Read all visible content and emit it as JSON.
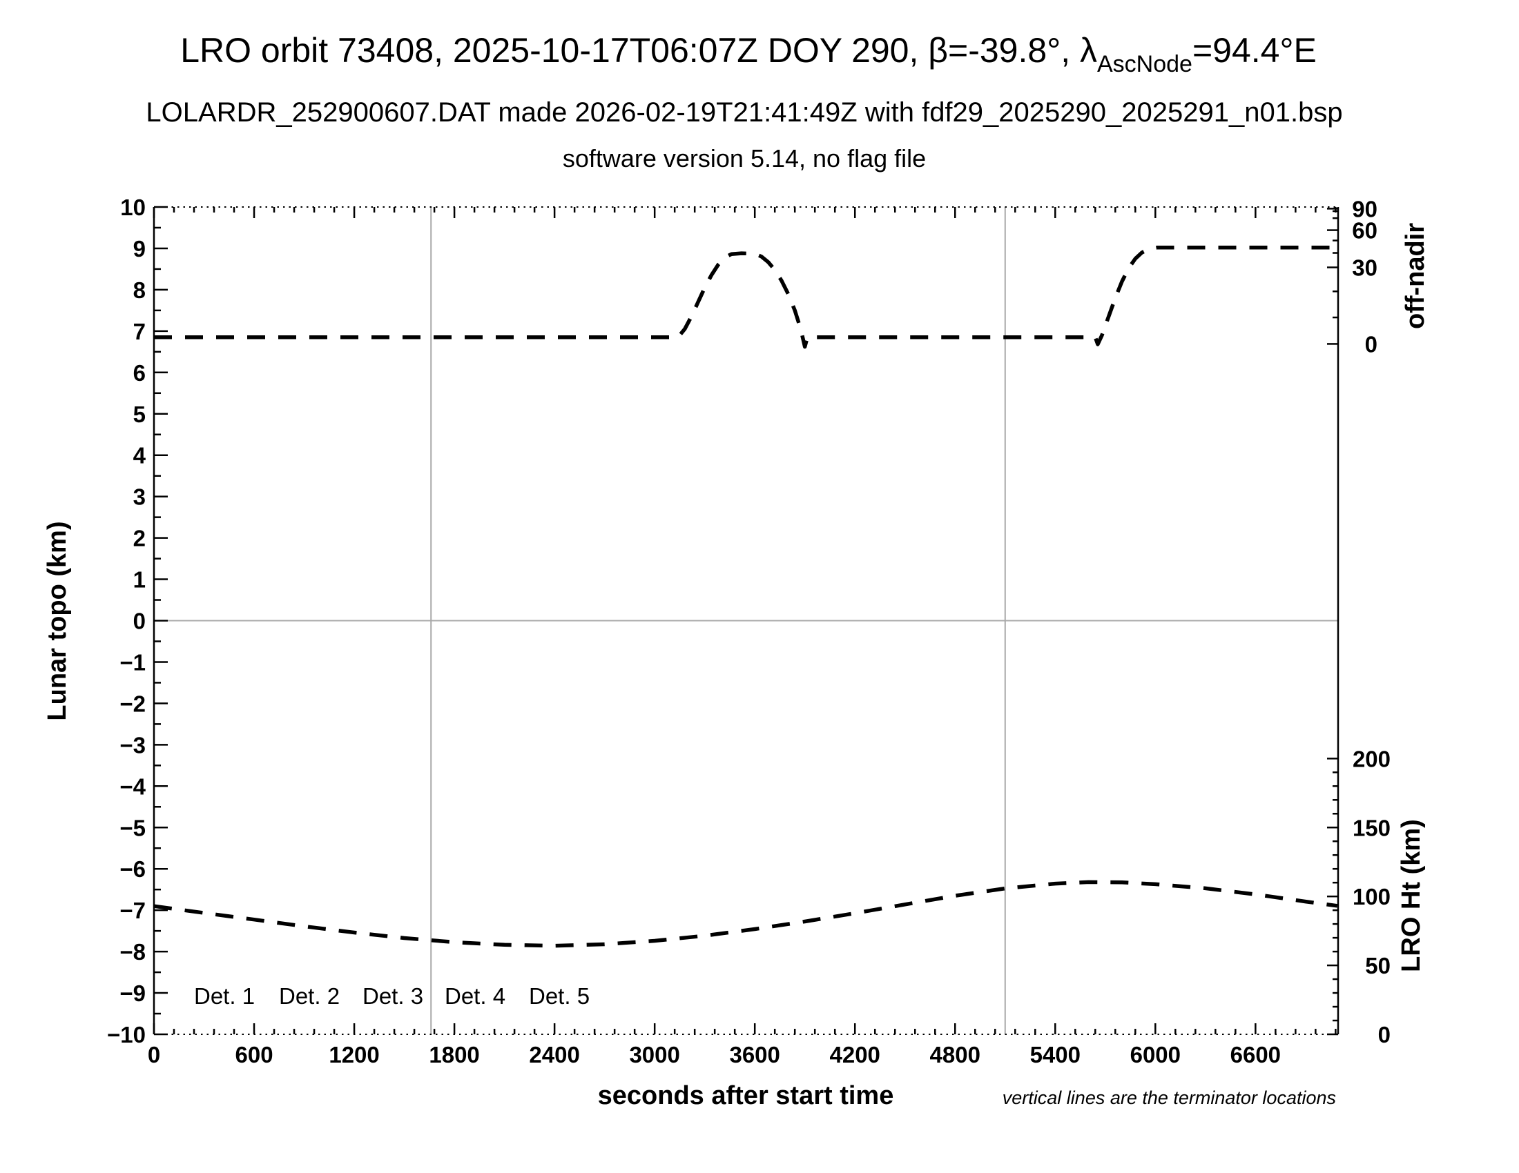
{
  "title": {
    "prefix": "LRO orbit 73408, 2025-10-17T06:07Z DOY 290, β=-39.8°, λ",
    "subscript": "AscNode",
    "suffix": "=94.4°E"
  },
  "subtitle_line1": "LOLARDR_252900607.DAT made 2026-02-19T21:41:49Z with fdf29_2025290_2025291_n01.bsp",
  "subtitle_line2": "software version 5.14, no flag file",
  "footnote": "vertical lines are the terminator locations",
  "legend": {
    "items": [
      {
        "label": "Det. 1",
        "color": "#000000"
      },
      {
        "label": "Det. 2",
        "color": "#0000ff"
      },
      {
        "label": "Det. 3",
        "color": "#00dd00"
      },
      {
        "label": "Det. 4",
        "color": "#ffa500"
      },
      {
        "label": "Det. 5",
        "color": "#ff0000"
      }
    ]
  },
  "chart_data": {
    "type": "line",
    "xlabel": "seconds after start time",
    "x_axis": {
      "min": 0,
      "max": 7095,
      "major_tick": 600,
      "minor_tick": 120,
      "tick_labels": [
        "0",
        "600",
        "1200",
        "1800",
        "2400",
        "3000",
        "3600",
        "4200",
        "4800",
        "5400",
        "6000",
        "6600"
      ]
    },
    "left_axis": {
      "label": "Lunar topo (km)",
      "min": -10,
      "max": 10,
      "major_tick": 1,
      "minor_tick": 0.5
    },
    "right_axis_offnadir": {
      "label": "off-nadir",
      "majors": [
        {
          "label": "90",
          "topo": 9.96
        },
        {
          "label": "60",
          "topo": 9.44
        },
        {
          "label": "30",
          "topo": 8.54
        },
        {
          "label": "0",
          "topo": 6.69
        }
      ],
      "minors_topo": [
        9.9,
        9.73,
        9.19,
        8.89,
        7.96,
        7.33
      ],
      "scale_note": "nonlinear (sine-compressed) angle scale drawn on the topo axis"
    },
    "right_axis_lro_ht": {
      "label": "LRO Ht (km)",
      "km_per_topo_unit": 30,
      "topo_at_0km": -10,
      "majors_km": [
        200,
        150,
        100,
        50,
        0
      ],
      "minor_km": 10
    },
    "terminator_lines_sec": [
      1660,
      5100
    ],
    "zero_line_topo": 0,
    "grid": false,
    "series": [
      {
        "name": "off-nadir angle",
        "color": "#000000",
        "style": "dashed",
        "units": "topo axis units",
        "points": [
          [
            0,
            6.85
          ],
          [
            3140,
            6.85
          ],
          [
            3180,
            7.05
          ],
          [
            3220,
            7.35
          ],
          [
            3260,
            7.7
          ],
          [
            3300,
            8.05
          ],
          [
            3340,
            8.35
          ],
          [
            3380,
            8.6
          ],
          [
            3420,
            8.78
          ],
          [
            3460,
            8.86
          ],
          [
            3520,
            8.88
          ],
          [
            3600,
            8.87
          ],
          [
            3640,
            8.8
          ],
          [
            3680,
            8.67
          ],
          [
            3720,
            8.48
          ],
          [
            3760,
            8.22
          ],
          [
            3800,
            7.9
          ],
          [
            3840,
            7.5
          ],
          [
            3875,
            7.05
          ],
          [
            3900,
            6.62
          ],
          [
            3915,
            6.85
          ],
          [
            5640,
            6.85
          ],
          [
            5655,
            6.68
          ],
          [
            5680,
            6.9
          ],
          [
            5720,
            7.35
          ],
          [
            5760,
            7.8
          ],
          [
            5800,
            8.2
          ],
          [
            5840,
            8.52
          ],
          [
            5880,
            8.75
          ],
          [
            5920,
            8.9
          ],
          [
            5960,
            8.98
          ],
          [
            6010,
            9.02
          ],
          [
            7090,
            9.02
          ]
        ],
        "approx_deg": [
          [
            0,
            2
          ],
          [
            3150,
            2
          ],
          [
            3500,
            34
          ],
          [
            3905,
            2
          ],
          [
            5650,
            2
          ],
          [
            6020,
            39
          ],
          [
            7090,
            39
          ]
        ]
      },
      {
        "name": "LRO height",
        "color": "#000000",
        "style": "dashed",
        "units": "km",
        "points": [
          [
            0,
            93
          ],
          [
            300,
            88
          ],
          [
            600,
            83.2
          ],
          [
            900,
            78.3
          ],
          [
            1200,
            73.8
          ],
          [
            1500,
            69.8
          ],
          [
            1800,
            66.8
          ],
          [
            2100,
            64.9
          ],
          [
            2400,
            64.2
          ],
          [
            2700,
            65.3
          ],
          [
            3000,
            67.8
          ],
          [
            3300,
            71.5
          ],
          [
            3600,
            76.3
          ],
          [
            3900,
            81.8
          ],
          [
            4200,
            87.8
          ],
          [
            4500,
            94.2
          ],
          [
            4800,
            100.5
          ],
          [
            5100,
            105.8
          ],
          [
            5400,
            109.3
          ],
          [
            5600,
            110.4
          ],
          [
            5800,
            110.2
          ],
          [
            6000,
            108.9
          ],
          [
            6300,
            105.9
          ],
          [
            6600,
            101.5
          ],
          [
            6900,
            96.3
          ],
          [
            7090,
            93.2
          ]
        ]
      }
    ]
  }
}
